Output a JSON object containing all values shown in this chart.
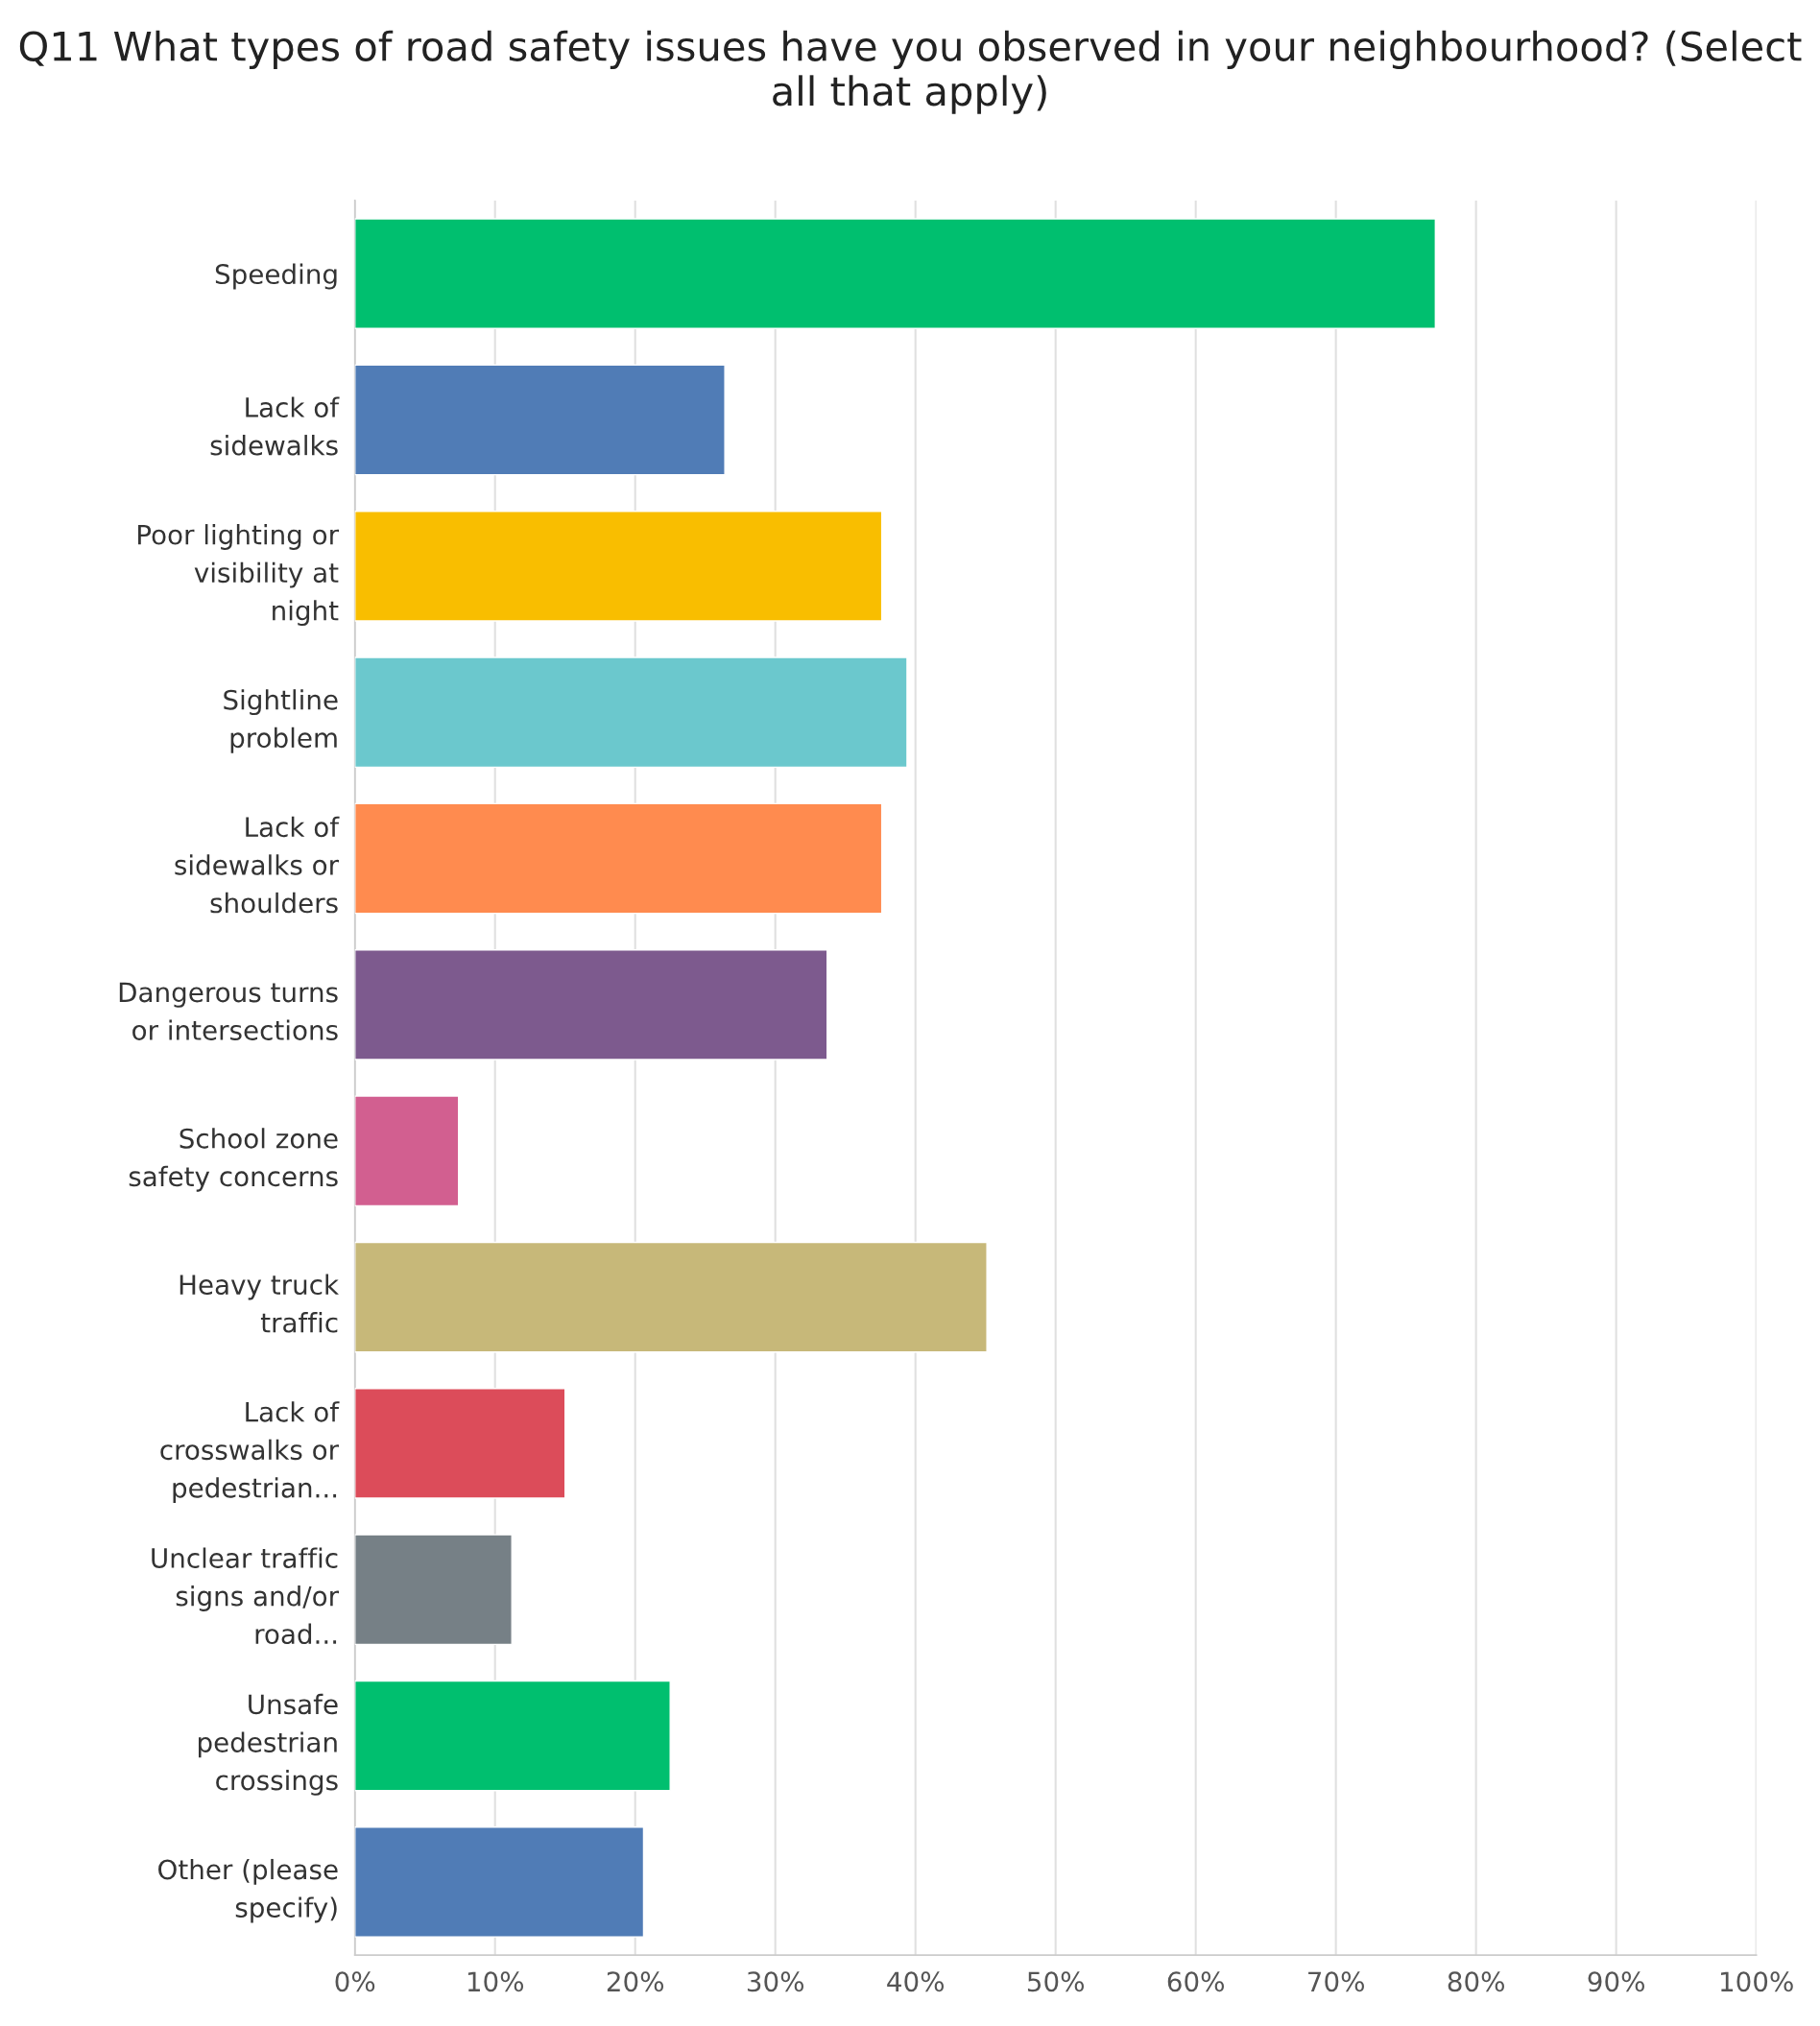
{
  "chart_data": {
    "type": "bar",
    "orientation": "horizontal",
    "title": "Q11 What types of road safety issues have you observed in your neighbourhood? (Select all that apply)",
    "categories": [
      "Speeding",
      "Lack of sidewalks",
      "Poor lighting or visibility at night",
      "Sightline problem",
      "Lack of sidewalks or shoulders",
      "Dangerous turns or intersections",
      "School zone safety concerns",
      "Heavy truck traffic",
      "Lack of crosswalks or pedestrian...",
      "Unclear traffic signs and/or road...",
      "Unsafe pedestrian crossings",
      "Other (please specify)"
    ],
    "values": [
      77.1,
      26.4,
      37.6,
      39.4,
      37.6,
      33.7,
      7.4,
      45.1,
      15.0,
      11.2,
      22.5,
      20.6
    ],
    "colors": [
      "#00bf6f",
      "#507cb6",
      "#f9be00",
      "#6bc8cd",
      "#ff8b4f",
      "#7d5a8e",
      "#d25f90",
      "#c7b879",
      "#dc4c5a",
      "#768086",
      "#00bf6f",
      "#507cb6"
    ],
    "xlim": [
      0,
      100
    ],
    "xticks": [
      {
        "value": 0,
        "label": "0%"
      },
      {
        "value": 10,
        "label": "10%"
      },
      {
        "value": 20,
        "label": "20%"
      },
      {
        "value": 30,
        "label": "30%"
      },
      {
        "value": 40,
        "label": "40%"
      },
      {
        "value": 50,
        "label": "50%"
      },
      {
        "value": 60,
        "label": "60%"
      },
      {
        "value": 70,
        "label": "70%"
      },
      {
        "value": 80,
        "label": "80%"
      },
      {
        "value": 90,
        "label": "90%"
      },
      {
        "value": 100,
        "label": "100%"
      }
    ],
    "grid": "x",
    "legend": false
  }
}
